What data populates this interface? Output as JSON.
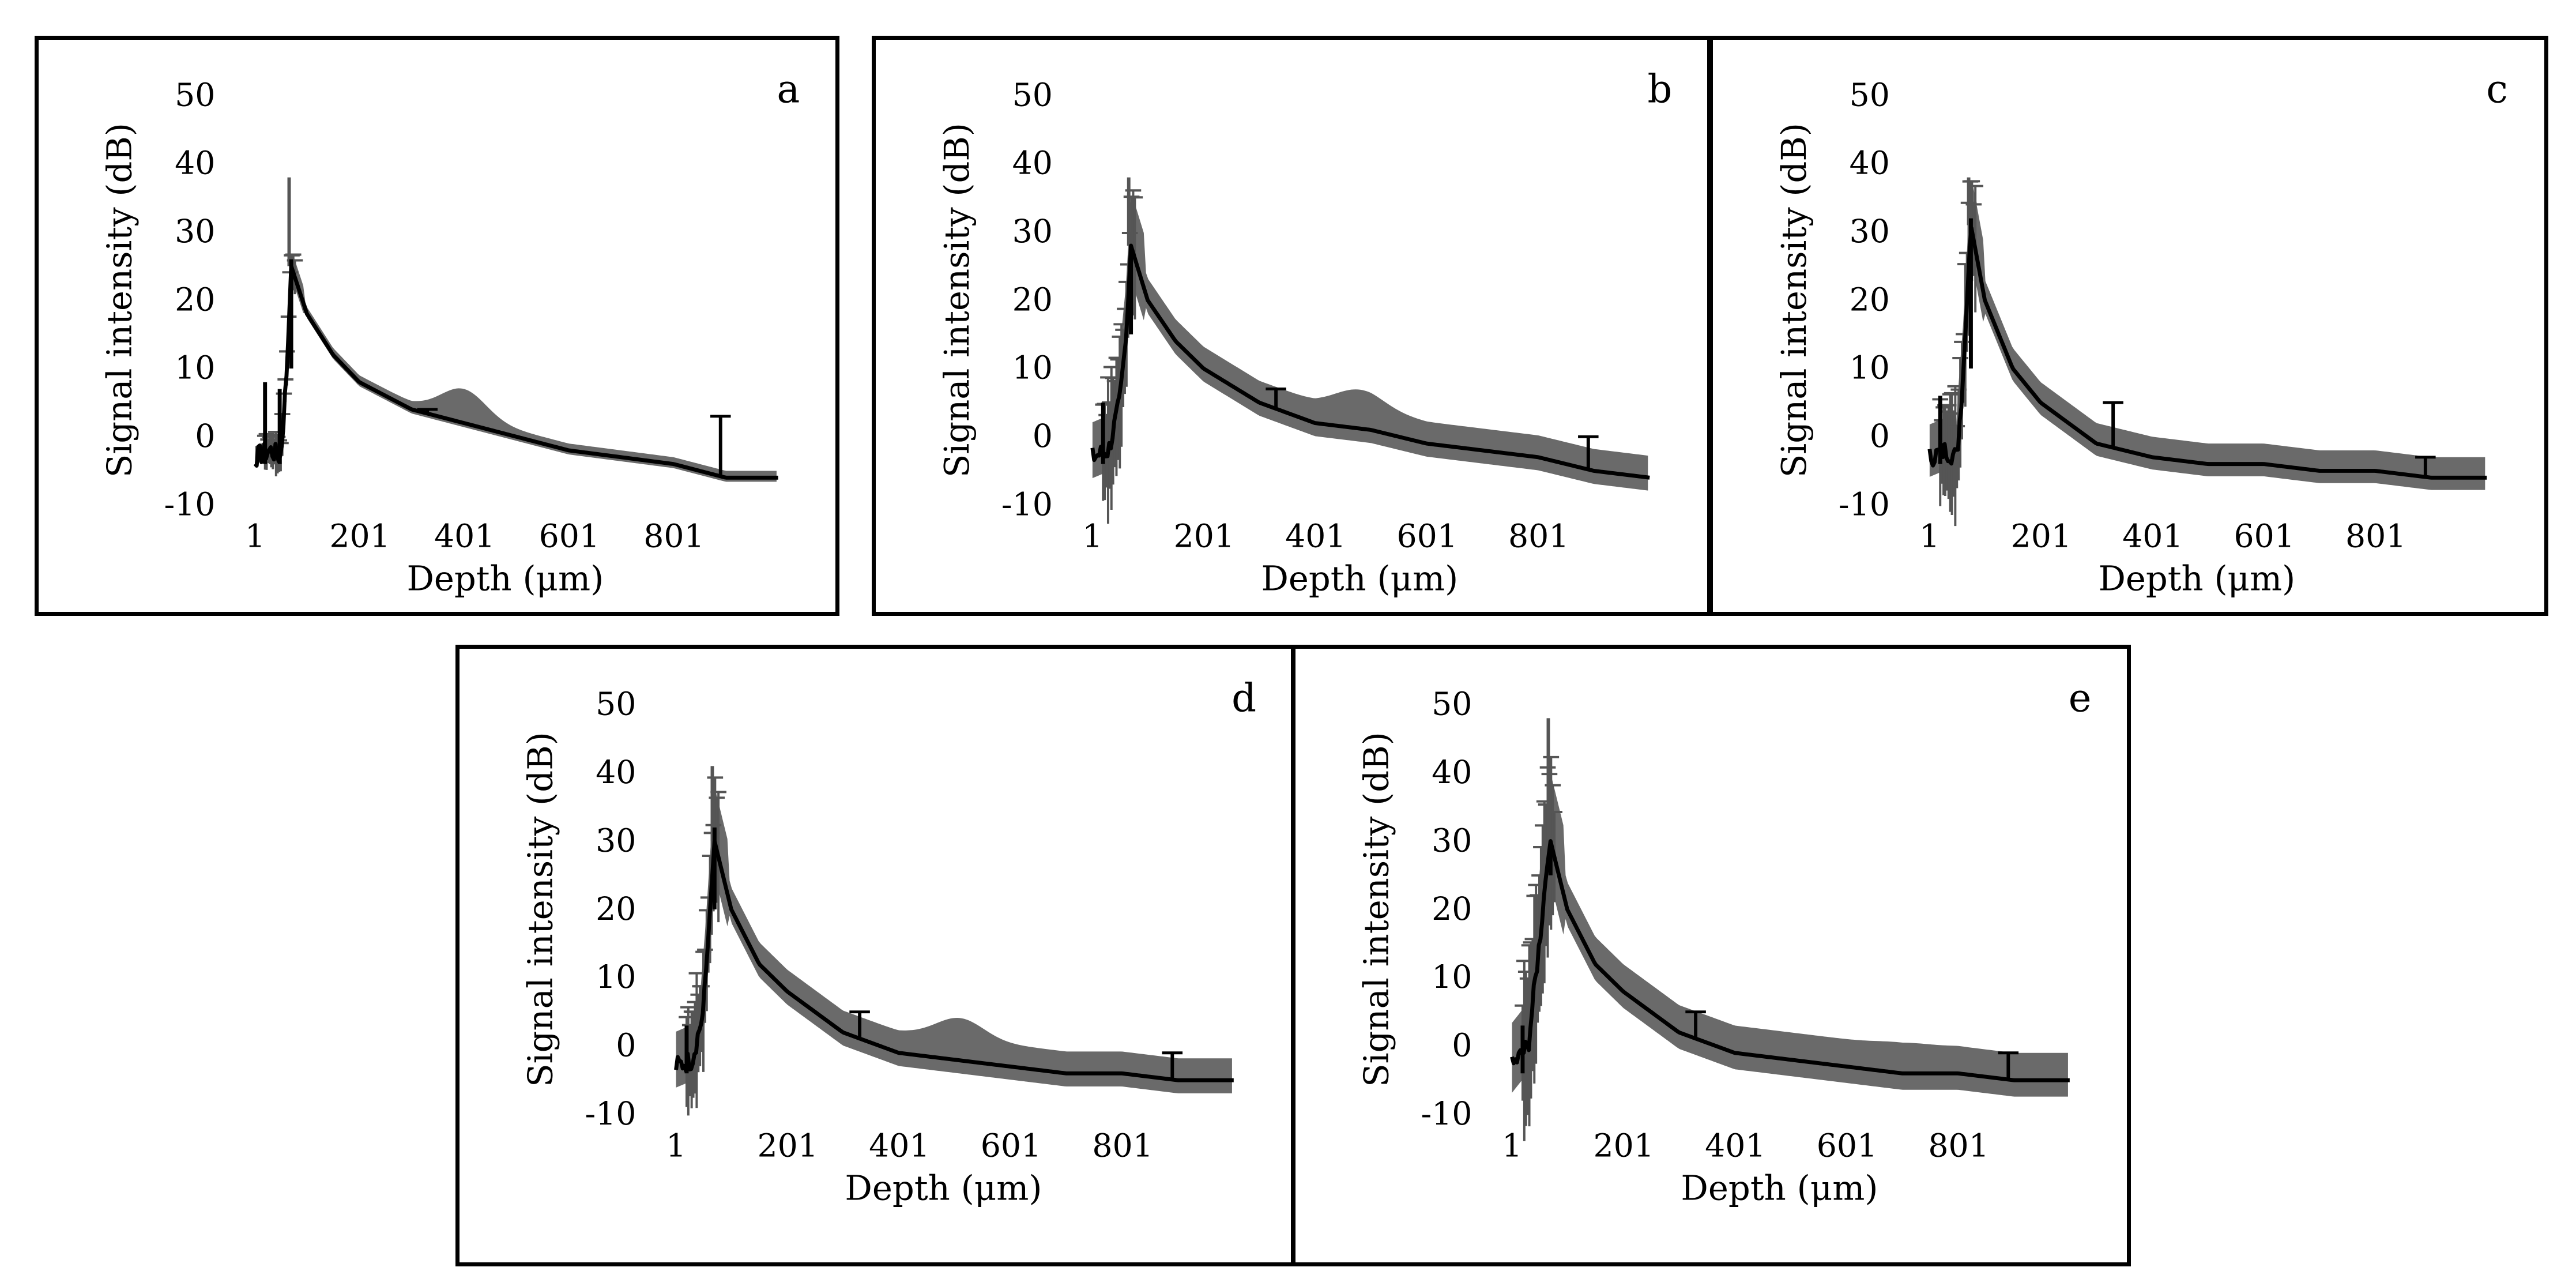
{
  "figure": {
    "panels": [
      {
        "letter": "a",
        "spread": 1.0,
        "main_spike": 38,
        "center_spike": 26,
        "pre_spikes": [
          [
            20,
            8
          ],
          [
            48,
            7
          ]
        ],
        "outliers": [
          [
            330,
            4
          ],
          [
            890,
            3
          ]
        ],
        "mid_bump": 4,
        "mid_pos": 400
      },
      {
        "letter": "b",
        "spread": 3.2,
        "main_spike": 38,
        "center_spike": 28,
        "pre_spikes": [
          [
            20,
            5
          ]
        ],
        "outliers": [
          [
            330,
            7
          ],
          [
            890,
            0
          ]
        ],
        "mid_bump": 2.5,
        "mid_pos": 480
      },
      {
        "letter": "c",
        "spread": 3.0,
        "main_spike": 38,
        "center_spike": 32,
        "pre_spikes": [
          [
            20,
            6
          ]
        ],
        "outliers": [
          [
            330,
            5
          ],
          [
            890,
            -3
          ]
        ],
        "mid_bump": 0,
        "mid_pos": 480
      },
      {
        "letter": "d",
        "spread": 3.2,
        "main_spike": 41,
        "center_spike": 32,
        "pre_spikes": [
          [
            20,
            3
          ]
        ],
        "outliers": [
          [
            330,
            5
          ],
          [
            890,
            -1
          ]
        ],
        "mid_bump": 3,
        "mid_pos": 510
      },
      {
        "letter": "e",
        "spread": 4.0,
        "main_spike": 48,
        "center_spike": 30,
        "pre_spikes": [
          [
            20,
            3
          ]
        ],
        "outliers": [
          [
            330,
            5
          ],
          [
            890,
            -1
          ]
        ],
        "mid_bump": 0.5,
        "mid_pos": 700
      }
    ]
  },
  "chart_data": [
    {
      "type": "line",
      "panel": "a",
      "title": "",
      "xlabel": "Depth (μm)",
      "ylabel": "Signal intensity (dB)",
      "xlim": [
        1,
        1000
      ],
      "ylim": [
        -10,
        50
      ],
      "x_ticks": [
        "1",
        "201",
        "401",
        "601",
        "801"
      ],
      "y_ticks": [
        "50",
        "40",
        "30",
        "20",
        "10",
        "0",
        "-10"
      ],
      "series": [
        {
          "name": "mean",
          "x": [
            1,
            30,
            50,
            62,
            70,
            100,
            150,
            200,
            300,
            400,
            500,
            600,
            700,
            800,
            900,
            1000
          ],
          "values": [
            -3,
            -2,
            -3,
            10,
            25,
            18,
            12,
            8,
            4,
            2,
            0,
            -2,
            -3,
            -4,
            -6,
            -6
          ]
        },
        {
          "name": "error band",
          "x": [
            300,
            400,
            500,
            600,
            700
          ],
          "values": [
            2,
            5,
            2,
            0,
            -2
          ]
        }
      ]
    },
    {
      "type": "line",
      "panel": "b",
      "title": "",
      "xlabel": "Depth (μm)",
      "ylabel": "Signal intensity (dB)",
      "xlim": [
        1,
        1000
      ],
      "ylim": [
        -10,
        50
      ],
      "x_ticks": [
        "1",
        "201",
        "401",
        "601",
        "801"
      ],
      "y_ticks": [
        "50",
        "40",
        "30",
        "20",
        "10",
        "0",
        "-10"
      ],
      "series": [
        {
          "name": "mean",
          "x": [
            1,
            30,
            50,
            62,
            70,
            100,
            150,
            200,
            300,
            400,
            500,
            600,
            700,
            800,
            900,
            1000
          ],
          "values": [
            -3,
            -2,
            5,
            15,
            28,
            20,
            14,
            10,
            5,
            2,
            1,
            -1,
            -2,
            -3,
            -5,
            -6
          ]
        }
      ]
    },
    {
      "type": "line",
      "panel": "c",
      "title": "",
      "xlabel": "Depth (μm)",
      "ylabel": "Signal intensity (dB)",
      "xlim": [
        1,
        1000
      ],
      "ylim": [
        -10,
        50
      ],
      "x_ticks": [
        "1",
        "201",
        "401",
        "601",
        "801"
      ],
      "y_ticks": [
        "50",
        "40",
        "30",
        "20",
        "10",
        "0",
        "-10"
      ],
      "series": [
        {
          "name": "mean",
          "x": [
            1,
            30,
            50,
            62,
            75,
            100,
            150,
            200,
            300,
            400,
            500,
            600,
            700,
            800,
            900,
            1000
          ],
          "values": [
            -3,
            -2,
            -3,
            10,
            31,
            20,
            10,
            5,
            -1,
            -3,
            -4,
            -4,
            -5,
            -5,
            -6,
            -6
          ]
        }
      ]
    },
    {
      "type": "line",
      "panel": "d",
      "title": "",
      "xlabel": "Depth (μm)",
      "ylabel": "Signal intensity (dB)",
      "xlim": [
        1,
        1000
      ],
      "ylim": [
        -10,
        50
      ],
      "x_ticks": [
        "1",
        "201",
        "401",
        "601",
        "801"
      ],
      "y_ticks": [
        "50",
        "40",
        "30",
        "20",
        "10",
        "0",
        "-10"
      ],
      "series": [
        {
          "name": "mean",
          "x": [
            1,
            30,
            50,
            62,
            70,
            100,
            150,
            200,
            300,
            400,
            500,
            600,
            700,
            800,
            900,
            1000
          ],
          "values": [
            -3,
            -2,
            5,
            20,
            30,
            20,
            12,
            8,
            2,
            -1,
            -2,
            -3,
            -4,
            -4,
            -5,
            -5
          ]
        }
      ]
    },
    {
      "type": "line",
      "panel": "e",
      "title": "",
      "xlabel": "Depth (μm)",
      "ylabel": "Signal intensity (dB)",
      "xlim": [
        1,
        1000
      ],
      "ylim": [
        -10,
        50
      ],
      "x_ticks": [
        "1",
        "201",
        "401",
        "601",
        "801"
      ],
      "y_ticks": [
        "50",
        "40",
        "30",
        "20",
        "10",
        "0",
        "-10"
      ],
      "series": [
        {
          "name": "mean",
          "x": [
            1,
            30,
            50,
            62,
            70,
            100,
            150,
            200,
            300,
            400,
            500,
            600,
            700,
            800,
            900,
            1000
          ],
          "values": [
            -3,
            0,
            15,
            25,
            30,
            20,
            12,
            8,
            2,
            -1,
            -2,
            -3,
            -4,
            -4,
            -5,
            -5
          ]
        }
      ]
    }
  ]
}
